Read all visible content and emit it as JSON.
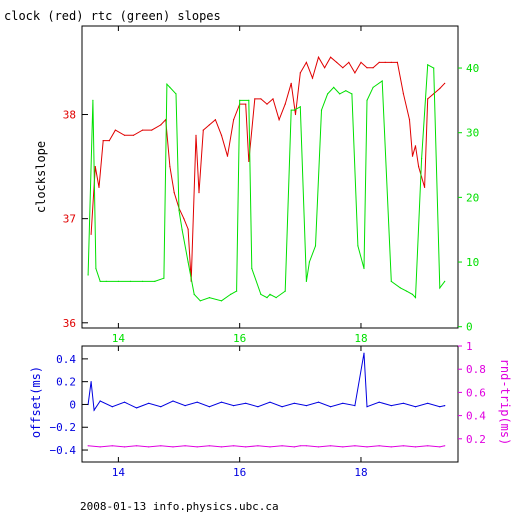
{
  "chart_data": [
    {
      "type": "line",
      "title": "clock (red) rtc (green) slopes",
      "xlabel": "",
      "ylabel": "clockslope",
      "y2label": "",
      "xlim": [
        13.4,
        19.6
      ],
      "ylim": [
        35.95,
        38.85
      ],
      "y2lim": [
        -0.2,
        46.5
      ],
      "x_ticks": [
        14,
        16,
        18
      ],
      "y_ticks": [
        36,
        37,
        38
      ],
      "y2_ticks": [
        0,
        10,
        20,
        30,
        40
      ],
      "grid": false,
      "colors": {
        "clock": "#e00000",
        "rtc": "#00e000",
        "axes": "#000000"
      },
      "series": [
        {
          "name": "clock",
          "axis": "left",
          "x": [
            13.55,
            13.62,
            13.68,
            13.75,
            13.85,
            13.95,
            14.1,
            14.25,
            14.4,
            14.55,
            14.7,
            14.78,
            14.85,
            14.92,
            15.0,
            15.08,
            15.15,
            15.2,
            15.28,
            15.33,
            15.4,
            15.5,
            15.6,
            15.7,
            15.8,
            15.9,
            16.0,
            16.1,
            16.15,
            16.25,
            16.35,
            16.45,
            16.55,
            16.65,
            16.75,
            16.85,
            16.92,
            17.0,
            17.1,
            17.2,
            17.3,
            17.4,
            17.5,
            17.6,
            17.7,
            17.8,
            17.9,
            18.0,
            18.1,
            18.2,
            18.3,
            18.4,
            18.5,
            18.6,
            18.7,
            18.8,
            18.85,
            18.9,
            18.95,
            19.0,
            19.05,
            19.1,
            19.2,
            19.3,
            19.38
          ],
          "values": [
            36.85,
            37.5,
            37.3,
            37.75,
            37.75,
            37.85,
            37.8,
            37.8,
            37.85,
            37.85,
            37.9,
            37.95,
            37.5,
            37.25,
            37.1,
            37.0,
            36.9,
            36.4,
            37.8,
            37.25,
            37.85,
            37.9,
            37.95,
            37.8,
            37.6,
            37.95,
            38.1,
            38.1,
            37.55,
            38.15,
            38.15,
            38.1,
            38.15,
            37.95,
            38.1,
            38.3,
            38.0,
            38.4,
            38.5,
            38.35,
            38.55,
            38.45,
            38.55,
            38.5,
            38.45,
            38.5,
            38.4,
            38.5,
            38.45,
            38.45,
            38.5,
            38.5,
            38.5,
            38.5,
            38.2,
            37.95,
            37.6,
            37.7,
            37.5,
            37.4,
            37.3,
            38.15,
            38.2,
            38.25,
            38.3
          ]
        },
        {
          "name": "rtc",
          "axis": "right",
          "x": [
            13.5,
            13.58,
            13.63,
            13.7,
            13.8,
            14.0,
            14.2,
            14.4,
            14.6,
            14.75,
            14.8,
            14.85,
            14.95,
            15.0,
            15.05,
            15.15,
            15.25,
            15.35,
            15.5,
            15.7,
            15.85,
            15.95,
            16.0,
            16.15,
            16.2,
            16.35,
            16.45,
            16.5,
            16.6,
            16.75,
            16.85,
            16.9,
            17.0,
            17.1,
            17.15,
            17.25,
            17.35,
            17.45,
            17.55,
            17.65,
            17.75,
            17.85,
            17.95,
            18.05,
            18.1,
            18.2,
            18.35,
            18.5,
            18.65,
            18.75,
            18.85,
            18.9,
            19.0,
            19.1,
            19.2,
            19.3,
            19.38
          ],
          "values": [
            8.0,
            35.0,
            9.0,
            7.0,
            7.0,
            7.0,
            7.0,
            7.0,
            7.0,
            7.5,
            37.5,
            37.0,
            36.0,
            18.0,
            15.0,
            10.0,
            5.0,
            4.0,
            4.5,
            4.0,
            5.0,
            5.5,
            35.0,
            35.0,
            9.0,
            5.0,
            4.5,
            5.0,
            4.5,
            5.5,
            33.5,
            33.5,
            34.0,
            7.0,
            10.0,
            12.5,
            33.5,
            36.0,
            37.0,
            36.0,
            36.5,
            36.0,
            12.5,
            9.0,
            35.0,
            37.0,
            38.0,
            7.0,
            6.0,
            5.5,
            5.0,
            4.5,
            26.0,
            40.5,
            40.0,
            6.0,
            7.0
          ]
        }
      ]
    },
    {
      "type": "line",
      "title": "",
      "xlabel": "",
      "ylabel": "offset(ms)",
      "y2label": "rnd-trip(ms)",
      "xlim": [
        13.4,
        19.6
      ],
      "ylim": [
        -0.505,
        0.513
      ],
      "y2lim": [
        0.0,
        1.0
      ],
      "x_ticks": [
        14,
        16,
        18
      ],
      "y_ticks": [
        -0.4,
        -0.2,
        0,
        0.2,
        0.4
      ],
      "y_ticks_labels": [
        "−0.4",
        "−0.2",
        "0",
        "0.2",
        "0.4"
      ],
      "y2_ticks": [
        0.2,
        0.4,
        0.6,
        0.8,
        1
      ],
      "grid": false,
      "colors": {
        "offset": "#0000e0",
        "rndtrip": "#e000e0",
        "axes": "#000000"
      },
      "series": [
        {
          "name": "offset",
          "axis": "left",
          "x": [
            13.5,
            13.55,
            13.6,
            13.7,
            13.9,
            14.1,
            14.3,
            14.5,
            14.7,
            14.9,
            15.1,
            15.3,
            15.5,
            15.7,
            15.9,
            16.1,
            16.3,
            16.5,
            16.7,
            16.9,
            17.1,
            17.3,
            17.5,
            17.7,
            17.9,
            18.05,
            18.1,
            18.3,
            18.5,
            18.7,
            18.9,
            19.1,
            19.3,
            19.38
          ],
          "values": [
            0.0,
            0.2,
            -0.05,
            0.03,
            -0.02,
            0.02,
            -0.03,
            0.01,
            -0.02,
            0.03,
            -0.01,
            0.02,
            -0.02,
            0.02,
            -0.01,
            0.01,
            -0.02,
            0.02,
            -0.02,
            0.01,
            -0.01,
            0.02,
            -0.02,
            0.01,
            -0.01,
            0.45,
            -0.02,
            0.02,
            -0.01,
            0.01,
            -0.02,
            0.01,
            -0.02,
            -0.01
          ]
        },
        {
          "name": "rnd-trip",
          "axis": "right",
          "x": [
            13.5,
            13.7,
            13.9,
            14.1,
            14.3,
            14.5,
            14.7,
            14.9,
            15.1,
            15.3,
            15.5,
            15.7,
            15.9,
            16.1,
            16.3,
            16.5,
            16.7,
            16.9,
            17.0,
            17.1,
            17.3,
            17.5,
            17.7,
            17.9,
            18.1,
            18.3,
            18.5,
            18.7,
            18.9,
            19.1,
            19.3,
            19.38
          ],
          "values": [
            0.14,
            0.13,
            0.14,
            0.13,
            0.14,
            0.13,
            0.14,
            0.13,
            0.14,
            0.13,
            0.14,
            0.13,
            0.14,
            0.13,
            0.14,
            0.13,
            0.14,
            0.13,
            0.14,
            0.14,
            0.13,
            0.14,
            0.13,
            0.14,
            0.13,
            0.14,
            0.13,
            0.14,
            0.13,
            0.14,
            0.13,
            0.14
          ]
        }
      ]
    }
  ],
  "footer": "2008-01-13 info.physics.ubc.ca"
}
